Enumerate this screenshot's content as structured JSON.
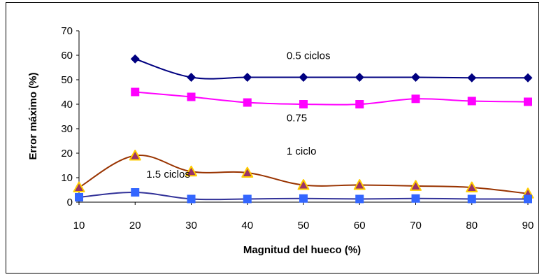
{
  "chart_data": {
    "type": "line",
    "title": "",
    "xlabel": "Magnitud del hueco (%)",
    "ylabel": "Error máximo (%)",
    "xlim": [
      10,
      90
    ],
    "ylim": [
      0,
      70
    ],
    "x_ticks": [
      "10",
      "20",
      "30",
      "40",
      "50",
      "60",
      "70",
      "80",
      "90"
    ],
    "y_ticks": [
      "0",
      "10",
      "20",
      "30",
      "40",
      "50",
      "60",
      "70"
    ],
    "grid": false,
    "legend": "none",
    "series": [
      {
        "name": "0.5 ciclos",
        "color": "#000080",
        "marker": "diamond",
        "marker_color": "#000080",
        "x": [
          20,
          30,
          40,
          50,
          60,
          70,
          80,
          90
        ],
        "values": [
          58.5,
          51,
          51,
          51,
          51,
          51,
          50.8,
          50.8
        ]
      },
      {
        "name": "0.75",
        "color": "#FF00FF",
        "marker": "square",
        "marker_color": "#FF00FF",
        "x": [
          20,
          30,
          40,
          50,
          60,
          70,
          80,
          90
        ],
        "values": [
          45,
          43,
          40.7,
          40,
          40,
          42.2,
          41.3,
          41
        ]
      },
      {
        "name": "1 ciclo",
        "color": "#993300",
        "marker": "triangle",
        "marker_color": "#993366",
        "marker_edge": "#FFCC00",
        "x": [
          10,
          20,
          30,
          40,
          50,
          60,
          70,
          80,
          90
        ],
        "values": [
          6,
          19,
          12.5,
          12,
          7,
          7,
          6.6,
          6,
          3.5
        ]
      },
      {
        "name": "1.5 ciclos",
        "color": "#333399",
        "marker": "square",
        "marker_color": "#3366FF",
        "x": [
          10,
          20,
          30,
          40,
          50,
          60,
          70,
          80,
          90
        ],
        "values": [
          2,
          4,
          1.3,
          1.3,
          1.5,
          1.3,
          1.5,
          1.3,
          1.3
        ]
      }
    ],
    "annotations": [
      {
        "text": "0.5 ciclos",
        "x": 47,
        "y": 58.5
      },
      {
        "text": "0.75",
        "x": 47,
        "y": 33
      },
      {
        "text": "1 ciclo",
        "x": 47,
        "y": 19.5
      },
      {
        "text": "1.5 ciclos",
        "x": 22,
        "y": 10
      }
    ]
  }
}
